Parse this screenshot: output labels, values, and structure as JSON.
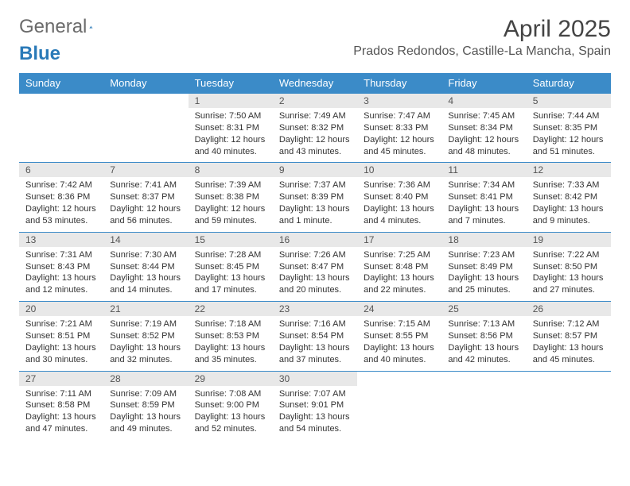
{
  "logo": {
    "text_general": "General",
    "text_blue": "Blue"
  },
  "title": "April 2025",
  "location": "Prados Redondos, Castille-La Mancha, Spain",
  "colors": {
    "header_bg": "#3b8bc8",
    "header_text": "#ffffff",
    "daynum_bg": "#e8e8e8",
    "border": "#3b8bc8",
    "logo_blue": "#2a7ab8"
  },
  "columns": [
    "Sunday",
    "Monday",
    "Tuesday",
    "Wednesday",
    "Thursday",
    "Friday",
    "Saturday"
  ],
  "weeks": [
    [
      null,
      null,
      {
        "n": "1",
        "sr": "7:50 AM",
        "ss": "8:31 PM",
        "dl": "12 hours and 40 minutes."
      },
      {
        "n": "2",
        "sr": "7:49 AM",
        "ss": "8:32 PM",
        "dl": "12 hours and 43 minutes."
      },
      {
        "n": "3",
        "sr": "7:47 AM",
        "ss": "8:33 PM",
        "dl": "12 hours and 45 minutes."
      },
      {
        "n": "4",
        "sr": "7:45 AM",
        "ss": "8:34 PM",
        "dl": "12 hours and 48 minutes."
      },
      {
        "n": "5",
        "sr": "7:44 AM",
        "ss": "8:35 PM",
        "dl": "12 hours and 51 minutes."
      }
    ],
    [
      {
        "n": "6",
        "sr": "7:42 AM",
        "ss": "8:36 PM",
        "dl": "12 hours and 53 minutes."
      },
      {
        "n": "7",
        "sr": "7:41 AM",
        "ss": "8:37 PM",
        "dl": "12 hours and 56 minutes."
      },
      {
        "n": "8",
        "sr": "7:39 AM",
        "ss": "8:38 PM",
        "dl": "12 hours and 59 minutes."
      },
      {
        "n": "9",
        "sr": "7:37 AM",
        "ss": "8:39 PM",
        "dl": "13 hours and 1 minute."
      },
      {
        "n": "10",
        "sr": "7:36 AM",
        "ss": "8:40 PM",
        "dl": "13 hours and 4 minutes."
      },
      {
        "n": "11",
        "sr": "7:34 AM",
        "ss": "8:41 PM",
        "dl": "13 hours and 7 minutes."
      },
      {
        "n": "12",
        "sr": "7:33 AM",
        "ss": "8:42 PM",
        "dl": "13 hours and 9 minutes."
      }
    ],
    [
      {
        "n": "13",
        "sr": "7:31 AM",
        "ss": "8:43 PM",
        "dl": "13 hours and 12 minutes."
      },
      {
        "n": "14",
        "sr": "7:30 AM",
        "ss": "8:44 PM",
        "dl": "13 hours and 14 minutes."
      },
      {
        "n": "15",
        "sr": "7:28 AM",
        "ss": "8:45 PM",
        "dl": "13 hours and 17 minutes."
      },
      {
        "n": "16",
        "sr": "7:26 AM",
        "ss": "8:47 PM",
        "dl": "13 hours and 20 minutes."
      },
      {
        "n": "17",
        "sr": "7:25 AM",
        "ss": "8:48 PM",
        "dl": "13 hours and 22 minutes."
      },
      {
        "n": "18",
        "sr": "7:23 AM",
        "ss": "8:49 PM",
        "dl": "13 hours and 25 minutes."
      },
      {
        "n": "19",
        "sr": "7:22 AM",
        "ss": "8:50 PM",
        "dl": "13 hours and 27 minutes."
      }
    ],
    [
      {
        "n": "20",
        "sr": "7:21 AM",
        "ss": "8:51 PM",
        "dl": "13 hours and 30 minutes."
      },
      {
        "n": "21",
        "sr": "7:19 AM",
        "ss": "8:52 PM",
        "dl": "13 hours and 32 minutes."
      },
      {
        "n": "22",
        "sr": "7:18 AM",
        "ss": "8:53 PM",
        "dl": "13 hours and 35 minutes."
      },
      {
        "n": "23",
        "sr": "7:16 AM",
        "ss": "8:54 PM",
        "dl": "13 hours and 37 minutes."
      },
      {
        "n": "24",
        "sr": "7:15 AM",
        "ss": "8:55 PM",
        "dl": "13 hours and 40 minutes."
      },
      {
        "n": "25",
        "sr": "7:13 AM",
        "ss": "8:56 PM",
        "dl": "13 hours and 42 minutes."
      },
      {
        "n": "26",
        "sr": "7:12 AM",
        "ss": "8:57 PM",
        "dl": "13 hours and 45 minutes."
      }
    ],
    [
      {
        "n": "27",
        "sr": "7:11 AM",
        "ss": "8:58 PM",
        "dl": "13 hours and 47 minutes."
      },
      {
        "n": "28",
        "sr": "7:09 AM",
        "ss": "8:59 PM",
        "dl": "13 hours and 49 minutes."
      },
      {
        "n": "29",
        "sr": "7:08 AM",
        "ss": "9:00 PM",
        "dl": "13 hours and 52 minutes."
      },
      {
        "n": "30",
        "sr": "7:07 AM",
        "ss": "9:01 PM",
        "dl": "13 hours and 54 minutes."
      },
      null,
      null,
      null
    ]
  ],
  "labels": {
    "sunrise": "Sunrise:",
    "sunset": "Sunset:",
    "daylight": "Daylight:"
  }
}
